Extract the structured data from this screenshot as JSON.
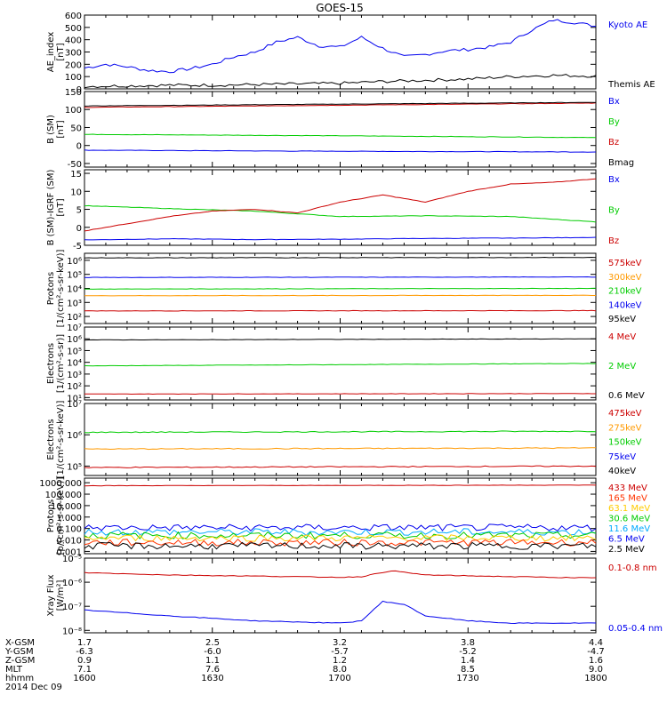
{
  "title": "GOES-15",
  "panels": [
    {
      "id": "ae",
      "ylabel": [
        "AE_index",
        "[nT]"
      ],
      "ymin": 0,
      "ymax": 600,
      "log": false,
      "ticks": [
        {
          "v": 0,
          "l": "0"
        },
        {
          "v": 100,
          "l": "100"
        },
        {
          "v": 200,
          "l": "200"
        },
        {
          "v": 300,
          "l": "300"
        },
        {
          "v": 400,
          "l": "400"
        },
        {
          "v": 500,
          "l": "500"
        },
        {
          "v": 600,
          "l": "600"
        }
      ],
      "legend": [
        {
          "label": "Kyoto AE",
          "color": "#0000ee"
        },
        {
          "label": "Themis AE",
          "color": "#000000"
        }
      ]
    },
    {
      "id": "bsm",
      "ylabel": [
        "B (SM)",
        "[nT]"
      ],
      "ymin": -60,
      "ymax": 150,
      "log": false,
      "ticks": [
        {
          "v": -50,
          "l": "-50"
        },
        {
          "v": 0,
          "l": "0"
        },
        {
          "v": 50,
          "l": "50"
        },
        {
          "v": 100,
          "l": "100"
        },
        {
          "v": 150,
          "l": "150"
        }
      ],
      "legend": [
        {
          "label": "Bx",
          "color": "#0000ee"
        },
        {
          "label": "By",
          "color": "#00cc00"
        },
        {
          "label": "Bz",
          "color": "#cc0000"
        },
        {
          "label": "Bmag",
          "color": "#000000"
        }
      ]
    },
    {
      "id": "bigrf",
      "ylabel": [
        "B (SM)-IGRF (SM)",
        "[nT]"
      ],
      "ymin": -5,
      "ymax": 16,
      "log": false,
      "ticks": [
        {
          "v": -5,
          "l": "-5"
        },
        {
          "v": 0,
          "l": "0"
        },
        {
          "v": 5,
          "l": "5"
        },
        {
          "v": 10,
          "l": "10"
        },
        {
          "v": 15,
          "l": "15"
        }
      ],
      "legend": [
        {
          "label": "Bx",
          "color": "#0000ee"
        },
        {
          "label": "By",
          "color": "#00cc00"
        },
        {
          "label": "Bz",
          "color": "#cc0000"
        }
      ]
    },
    {
      "id": "protons1",
      "ylabel": [
        "Protons",
        "[1/(cm²-s-sr-keV)]"
      ],
      "ymin": 1.5,
      "ymax": 6.5,
      "log": true,
      "ticks": [
        {
          "v": 2,
          "l": "10²"
        },
        {
          "v": 3,
          "l": "10³"
        },
        {
          "v": 4,
          "l": "10⁴"
        },
        {
          "v": 5,
          "l": "10⁵"
        },
        {
          "v": 6,
          "l": "10⁶"
        }
      ],
      "legend": [
        {
          "label": "575keV",
          "color": "#cc0000"
        },
        {
          "label": "300keV",
          "color": "#ff9900"
        },
        {
          "label": "210keV",
          "color": "#00cc00"
        },
        {
          "label": "140keV",
          "color": "#0000ee"
        },
        {
          "label": "95keV",
          "color": "#000000"
        }
      ]
    },
    {
      "id": "electrons1",
      "ylabel": [
        "Electrons",
        "[1/(cm²-s-sr)]"
      ],
      "ymin": 0.8,
      "ymax": 7,
      "log": true,
      "ticks": [
        {
          "v": 1,
          "l": "10¹"
        },
        {
          "v": 2,
          "l": "10²"
        },
        {
          "v": 3,
          "l": "10³"
        },
        {
          "v": 4,
          "l": "10⁴"
        },
        {
          "v": 5,
          "l": "10⁵"
        },
        {
          "v": 6,
          "l": "10⁶"
        },
        {
          "v": 7,
          "l": "10⁷"
        }
      ],
      "legend": [
        {
          "label": "4 MeV",
          "color": "#cc0000"
        },
        {
          "label": "2 MeV",
          "color": "#00cc00"
        },
        {
          "label": "0.6 MeV",
          "color": "#000000"
        }
      ]
    },
    {
      "id": "electrons2",
      "ylabel": [
        "Electrons",
        "[1/(cm²-s-sr-keV)]"
      ],
      "ymin": 4.7,
      "ymax": 7,
      "log": true,
      "ticks": [
        {
          "v": 5,
          "l": "10⁵"
        },
        {
          "v": 6,
          "l": "10⁶"
        },
        {
          "v": 7,
          "l": "10⁷"
        }
      ],
      "legend": [
        {
          "label": "475keV",
          "color": "#cc0000"
        },
        {
          "label": "275keV",
          "color": "#ff9900"
        },
        {
          "label": "150keV",
          "color": "#00cc00"
        },
        {
          "label": "75keV",
          "color": "#0000ee"
        },
        {
          "label": "40keV",
          "color": "#000000"
        }
      ]
    },
    {
      "id": "protons2",
      "ylabel": [
        "Protons",
        "[p/(cm²-s-sr-keV)]"
      ],
      "ymin": -3.2,
      "ymax": 3.4,
      "log": true,
      "ticks": [
        {
          "v": -3,
          "l": "0.001"
        },
        {
          "v": -2,
          "l": "0.010"
        },
        {
          "v": -1,
          "l": "0.100"
        },
        {
          "v": 0,
          "l": "1.000"
        },
        {
          "v": 1,
          "l": "10.000"
        },
        {
          "v": 2,
          "l": "100.000"
        },
        {
          "v": 3,
          "l": "1000.000"
        }
      ],
      "legend": [
        {
          "label": "433 MeV",
          "color": "#cc0000"
        },
        {
          "label": "165 MeV",
          "color": "#ff3300"
        },
        {
          "label": "63.1 MeV",
          "color": "#ffcc00"
        },
        {
          "label": "30.6 MeV",
          "color": "#00cc00"
        },
        {
          "label": "11.6 MeV",
          "color": "#00aaff"
        },
        {
          "label": "6.5 MeV",
          "color": "#0000ee"
        },
        {
          "label": "2.5 MeV",
          "color": "#000000"
        }
      ]
    },
    {
      "id": "xray",
      "ylabel": [
        "Xray Flux",
        "[W/m²]"
      ],
      "ymin": -8.1,
      "ymax": -5,
      "log": true,
      "ticks": [
        {
          "v": -8,
          "l": "10⁻⁸"
        },
        {
          "v": -7,
          "l": "10⁻⁷"
        },
        {
          "v": -6,
          "l": "10⁻⁶"
        },
        {
          "v": -5,
          "l": "10⁻⁵"
        }
      ],
      "legend": [
        {
          "label": "0.1-0.8 nm",
          "color": "#cc0000"
        },
        {
          "label": "0.05-0.4 nm",
          "color": "#0000ee"
        }
      ]
    }
  ],
  "footer": {
    "rows": [
      {
        "label": "X-GSM",
        "values": [
          "1.7",
          "2.5",
          "3.2",
          "3.8",
          "4.4"
        ]
      },
      {
        "label": "Y-GSM",
        "values": [
          "-6.3",
          "-6.0",
          "-5.7",
          "-5.2",
          "-4.7"
        ]
      },
      {
        "label": "Z-GSM",
        "values": [
          "0.9",
          "1.1",
          "1.2",
          "1.4",
          "1.6"
        ]
      },
      {
        "label": "MLT",
        "values": [
          "7.1",
          "7.6",
          "8.0",
          "8.5",
          "9.0"
        ]
      },
      {
        "label": "hhmm",
        "values": [
          "1600",
          "1630",
          "1700",
          "1730",
          "1800"
        ]
      }
    ],
    "date": "2014 Dec 09"
  },
  "chart_data": {
    "type": "line",
    "title": "GOES-15",
    "x_hhmm_ticks": [
      "1600",
      "1630",
      "1700",
      "1730",
      "1800"
    ],
    "panels": [
      {
        "id": "ae",
        "series": [
          {
            "name": "Kyoto AE",
            "x": [
              1600,
              1605,
              1610,
              1615,
              1620,
              1625,
              1630,
              1635,
              1640,
              1645,
              1650,
              1655,
              1700,
              1705,
              1710,
              1715,
              1720,
              1725,
              1730,
              1735,
              1740,
              1745,
              1750,
              1755,
              1800
            ],
            "y": [
              170,
              200,
              180,
              150,
              140,
              165,
              200,
              260,
              300,
              380,
              420,
              350,
              340,
              420,
              330,
              260,
              280,
              310,
              320,
              340,
              380,
              480,
              560,
              540,
              510
            ]
          },
          {
            "name": "Themis AE",
            "x": [
              1600,
              1610,
              1620,
              1630,
              1640,
              1650,
              1700,
              1710,
              1720,
              1730,
              1740,
              1750,
              1800
            ],
            "y": [
              20,
              25,
              30,
              30,
              35,
              40,
              45,
              60,
              70,
              80,
              100,
              110,
              105
            ]
          }
        ]
      },
      {
        "id": "bsm",
        "series": [
          {
            "name": "Bx",
            "x": [
              1600,
              1700,
              1800
            ],
            "y": [
              -13,
              -16,
              -18
            ]
          },
          {
            "name": "By",
            "x": [
              1600,
              1700,
              1800
            ],
            "y": [
              31,
              27,
              22
            ]
          },
          {
            "name": "Bz",
            "x": [
              1600,
              1700,
              1800
            ],
            "y": [
              106,
              112,
              118
            ]
          },
          {
            "name": "Bmag",
            "x": [
              1600,
              1700,
              1800
            ],
            "y": [
              110,
              115,
              120
            ]
          }
        ]
      },
      {
        "id": "bigrf",
        "series": [
          {
            "name": "Bx",
            "x": [
              1600,
              1620,
              1640,
              1700,
              1720,
              1740,
              1800
            ],
            "y": [
              -3.5,
              -3.2,
              -3.4,
              -3.3,
              -3.1,
              -3.0,
              -2.8
            ]
          },
          {
            "name": "By",
            "x": [
              1600,
              1620,
              1640,
              1700,
              1720,
              1740,
              1800
            ],
            "y": [
              6,
              5.2,
              4.5,
              3.0,
              3.2,
              3.0,
              1.5
            ]
          },
          {
            "name": "Bz",
            "x": [
              1600,
              1610,
              1620,
              1630,
              1640,
              1650,
              1700,
              1710,
              1720,
              1730,
              1740,
              1750,
              1800
            ],
            "y": [
              -1,
              1,
              3,
              4.5,
              5,
              4,
              7,
              9,
              7,
              10,
              12,
              12.5,
              13.5
            ]
          }
        ]
      },
      {
        "id": "protons1",
        "series": [
          {
            "name": "575keV",
            "x": [
              1600,
              1800
            ],
            "y": [
              250,
              260
            ]
          },
          {
            "name": "300keV",
            "x": [
              1600,
              1800
            ],
            "y": [
              3000,
              3200
            ]
          },
          {
            "name": "210keV",
            "x": [
              1600,
              1800
            ],
            "y": [
              9000,
              10000
            ]
          },
          {
            "name": "140keV",
            "x": [
              1600,
              1800
            ],
            "y": [
              60000,
              65000
            ]
          },
          {
            "name": "95keV",
            "x": [
              1600,
              1800
            ],
            "y": [
              1500000,
              1600000
            ]
          }
        ]
      },
      {
        "id": "electrons1",
        "series": [
          {
            "name": "4 MeV",
            "x": [
              1600,
              1800
            ],
            "y": [
              20,
              22
            ]
          },
          {
            "name": "2 MeV",
            "x": [
              1600,
              1800
            ],
            "y": [
              5000,
              8000
            ]
          },
          {
            "name": "0.6 MeV",
            "x": [
              1600,
              1800
            ],
            "y": [
              800000,
              1000000
            ]
          }
        ]
      },
      {
        "id": "electrons2",
        "series": [
          {
            "name": "475keV",
            "x": [
              1600,
              1800
            ],
            "y": [
              90000,
              100000
            ]
          },
          {
            "name": "275keV",
            "x": [
              1600,
              1800
            ],
            "y": [
              350000,
              380000
            ]
          },
          {
            "name": "150keV",
            "x": [
              1600,
              1800
            ],
            "y": [
              1200000,
              1300000
            ]
          }
        ]
      },
      {
        "id": "protons2",
        "series": [
          {
            "name": "433 MeV",
            "x": [
              1600,
              1800
            ],
            "y": [
              550,
              620
            ]
          },
          {
            "name": "6.5 MeV",
            "x": [
              1600,
              1800
            ],
            "y": [
              0.12,
              0.12
            ]
          },
          {
            "name": "11.6 MeV",
            "x": [
              1600,
              1800
            ],
            "y": [
              0.05,
              0.05
            ]
          },
          {
            "name": "30.6 MeV",
            "x": [
              1600,
              1800
            ],
            "y": [
              0.025,
              0.025
            ]
          },
          {
            "name": "63.1 MeV",
            "x": [
              1600,
              1800
            ],
            "y": [
              0.015,
              0.015
            ]
          },
          {
            "name": "165 MeV",
            "x": [
              1600,
              1800
            ],
            "y": [
              0.006,
              0.006
            ]
          },
          {
            "name": "2.5 MeV",
            "x": [
              1600,
              1800
            ],
            "y": [
              0.003,
              0.003
            ]
          }
        ]
      },
      {
        "id": "xray",
        "series": [
          {
            "name": "0.1-0.8 nm",
            "x": [
              1600,
              1620,
              1640,
              1700,
              1705,
              1712,
              1720,
              1740,
              1800
            ],
            "y": [
              2.5e-06,
              2e-06,
              1.8e-06,
              1.6e-06,
              1.7e-06,
              3e-06,
              2e-06,
              1.7e-06,
              1.5e-06
            ]
          },
          {
            "name": "0.05-0.4 nm",
            "x": [
              1600,
              1620,
              1640,
              1700,
              1705,
              1710,
              1715,
              1720,
              1730,
              1740,
              1800
            ],
            "y": [
              7e-08,
              4e-08,
              2.5e-08,
              2e-08,
              2.5e-08,
              1.6e-07,
              1.2e-07,
              4e-08,
              2.5e-08,
              2e-08,
              2e-08
            ]
          }
        ]
      }
    ]
  }
}
